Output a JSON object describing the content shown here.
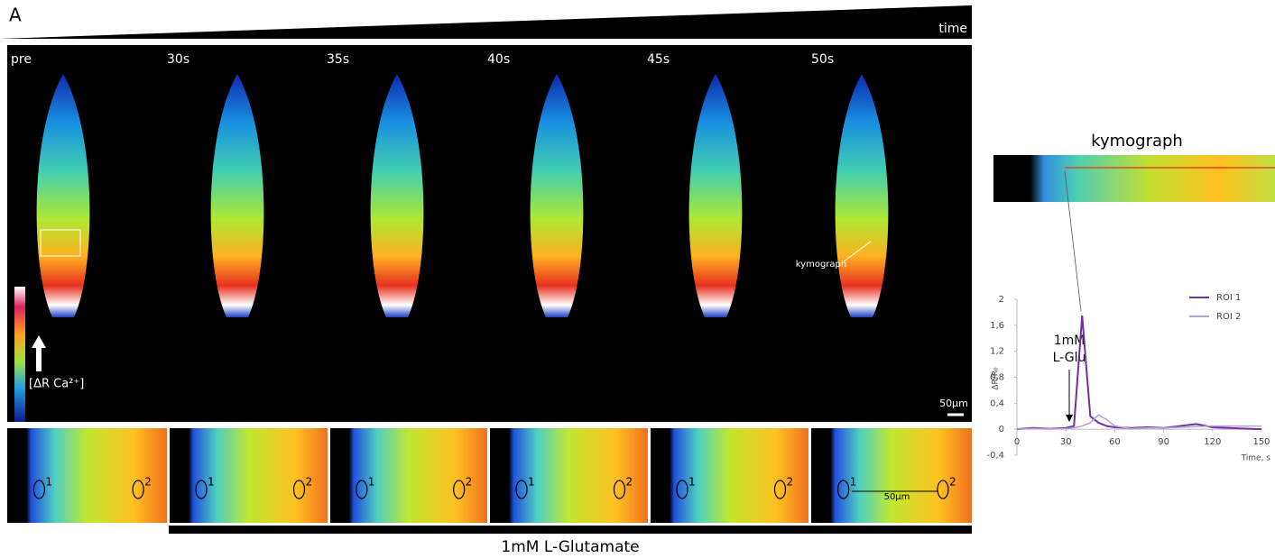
{
  "figure": {
    "panel_label": "A",
    "time_label": "time",
    "frames": [
      "pre",
      "30s",
      "35s",
      "40s",
      "45s",
      "50s"
    ],
    "colorbar_label": "[ΔR Ca²⁺]",
    "scale_bar": "50µm",
    "roi_labels": [
      "1",
      "2"
    ],
    "strip_scale": "50µm",
    "treatment": "1mM L-Glutamate",
    "kymograph_title": "kymograph",
    "kymograph_annotation": "kymograph"
  },
  "chart_data": {
    "type": "line",
    "x_label": "Time, s",
    "y_label": "ΔR/R₀",
    "annotation": [
      "1mM",
      "L-Glu"
    ],
    "x": [
      0,
      10,
      20,
      30,
      35,
      40,
      45,
      50,
      55,
      60,
      70,
      80,
      90,
      100,
      110,
      120,
      130,
      140,
      150
    ],
    "series": [
      {
        "name": "ROI 1",
        "color": "#7030a0",
        "values": [
          0,
          0.02,
          0.01,
          0.02,
          0.05,
          1.75,
          0.2,
          0.1,
          0.05,
          0.03,
          0.02,
          0.03,
          0.02,
          0.05,
          0.08,
          0.03,
          0.02,
          0.01,
          0
        ]
      },
      {
        "name": "ROI 2",
        "color": "#b4a0d8",
        "values": [
          0,
          0.01,
          0.01,
          0.01,
          0.02,
          0.05,
          0.1,
          0.22,
          0.15,
          0.05,
          0.01,
          0.02,
          0.02,
          0.03,
          0.04,
          0.05,
          0.05,
          0.05,
          0.05
        ]
      }
    ],
    "xlim": [
      0,
      150
    ],
    "xticks": [
      0,
      30,
      60,
      90,
      120,
      150
    ],
    "ylim": [
      -0.4,
      2
    ],
    "yticks": [
      {
        "value": -0.4,
        "label": "-0,4"
      },
      0,
      {
        "value": 0.4,
        "label": "0,4"
      },
      {
        "value": 0.8,
        "label": "0,8"
      },
      {
        "value": 1.2,
        "label": "1,2"
      },
      {
        "value": 1.6,
        "label": "1,6"
      },
      2
    ],
    "legend": "top-right"
  }
}
